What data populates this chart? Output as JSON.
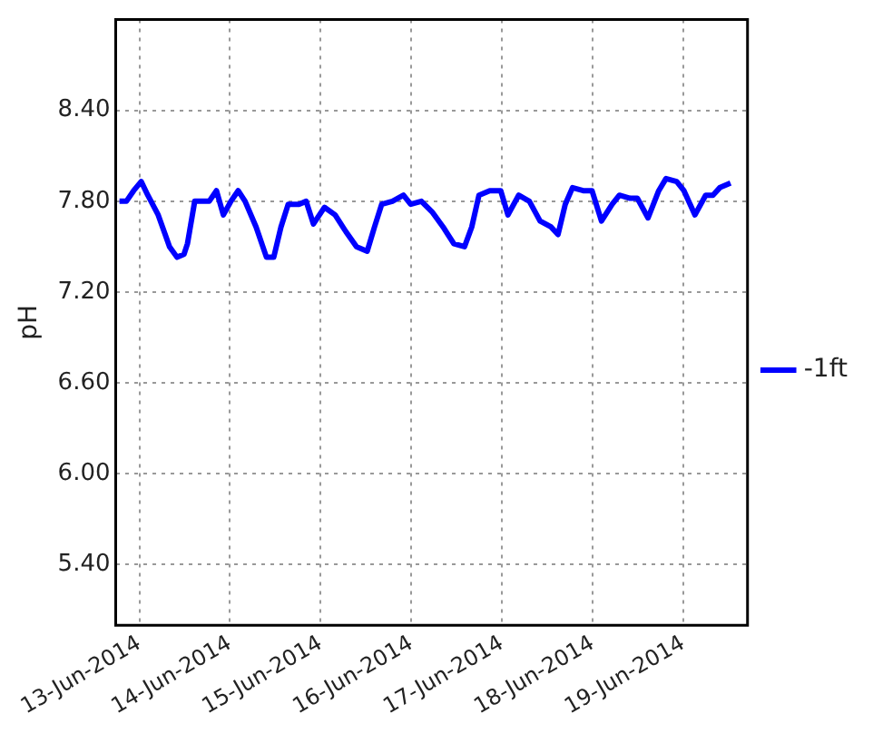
{
  "chart_data": {
    "type": "line",
    "ylabel": "pH",
    "xlim": [
      "2014-06-12T17:45",
      "2014-06-19T17:00"
    ],
    "xticks": [
      {
        "value": "2014-06-13",
        "label": "13-Jun-2014"
      },
      {
        "value": "2014-06-14",
        "label": "14-Jun-2014"
      },
      {
        "value": "2014-06-15",
        "label": "15-Jun-2014"
      },
      {
        "value": "2014-06-16",
        "label": "16-Jun-2014"
      },
      {
        "value": "2014-06-17",
        "label": "17-Jun-2014"
      },
      {
        "value": "2014-06-18",
        "label": "18-Jun-2014"
      },
      {
        "value": "2014-06-19",
        "label": "19-Jun-2014"
      }
    ],
    "ylim": [
      5.0,
      9.0
    ],
    "yticks": [
      {
        "value": 5.4,
        "label": "5.40"
      },
      {
        "value": 6.0,
        "label": "6.00"
      },
      {
        "value": 6.6,
        "label": "6.60"
      },
      {
        "value": 7.2,
        "label": "7.20"
      },
      {
        "value": 7.8,
        "label": "7.80"
      },
      {
        "value": 8.4,
        "label": "8.40"
      }
    ],
    "grid": true,
    "legend": "right",
    "marker": "none",
    "line_style": "solid",
    "x": [
      "2014-06-12T18:45",
      "2014-06-12T20:35",
      "2014-06-12T22:30",
      "2014-06-13T00:30",
      "2014-06-13T02:15",
      "2014-06-13T05:00",
      "2014-06-13T08:00",
      "2014-06-13T10:00",
      "2014-06-13T11:50",
      "2014-06-13T12:45",
      "2014-06-13T14:40",
      "2014-06-13T16:35",
      "2014-06-13T18:30",
      "2014-06-13T20:25",
      "2014-06-13T22:15",
      "2014-06-14T00:15",
      "2014-06-14T02:10",
      "2014-06-14T04:00",
      "2014-06-14T06:55",
      "2014-06-14T09:40",
      "2014-06-14T11:35",
      "2014-06-14T13:30",
      "2014-06-14T15:25",
      "2014-06-14T18:15",
      "2014-06-14T20:10",
      "2014-06-14T22:05",
      "2014-06-15T01:00",
      "2014-06-15T03:50",
      "2014-06-15T06:40",
      "2014-06-15T09:30",
      "2014-06-15T12:20",
      "2014-06-15T14:15",
      "2014-06-15T16:10",
      "2014-06-15T19:00",
      "2014-06-15T21:55",
      "2014-06-15T23:50",
      "2014-06-16T02:40",
      "2014-06-16T05:30",
      "2014-06-16T08:25",
      "2014-06-16T11:15",
      "2014-06-16T14:05",
      "2014-06-16T16:00",
      "2014-06-16T17:55",
      "2014-06-16T20:45",
      "2014-06-16T23:40",
      "2014-06-17T01:35",
      "2014-06-17T04:25",
      "2014-06-17T07:15",
      "2014-06-17T10:05",
      "2014-06-17T13:00",
      "2014-06-17T14:50",
      "2014-06-17T16:45",
      "2014-06-17T18:40",
      "2014-06-17T21:30",
      "2014-06-17T23:50",
      "2014-06-18T02:20",
      "2014-06-18T05:10",
      "2014-06-18T07:05",
      "2014-06-18T09:55",
      "2014-06-18T11:50",
      "2014-06-18T14:40",
      "2014-06-18T17:30",
      "2014-06-18T19:25",
      "2014-06-18T22:15",
      "2014-06-19T00:10",
      "2014-06-19T03:05",
      "2014-06-19T05:55",
      "2014-06-19T07:50",
      "2014-06-19T09:40",
      "2014-06-19T12:30"
    ],
    "series": [
      {
        "name": "-1ft",
        "color": "#0000ff",
        "values": [
          7.8,
          7.8,
          7.87,
          7.93,
          7.84,
          7.71,
          7.5,
          7.43,
          7.45,
          7.52,
          7.8,
          7.8,
          7.8,
          7.87,
          7.71,
          7.8,
          7.87,
          7.8,
          7.63,
          7.43,
          7.43,
          7.63,
          7.78,
          7.78,
          7.8,
          7.65,
          7.76,
          7.71,
          7.6,
          7.5,
          7.47,
          7.63,
          7.78,
          7.8,
          7.84,
          7.78,
          7.8,
          7.73,
          7.63,
          7.52,
          7.5,
          7.63,
          7.84,
          7.87,
          7.87,
          7.71,
          7.84,
          7.8,
          7.67,
          7.63,
          7.58,
          7.78,
          7.89,
          7.87,
          7.87,
          7.67,
          7.78,
          7.84,
          7.82,
          7.82,
          7.69,
          7.87,
          7.95,
          7.93,
          7.87,
          7.71,
          7.84,
          7.84,
          7.89,
          7.92
        ]
      }
    ]
  }
}
